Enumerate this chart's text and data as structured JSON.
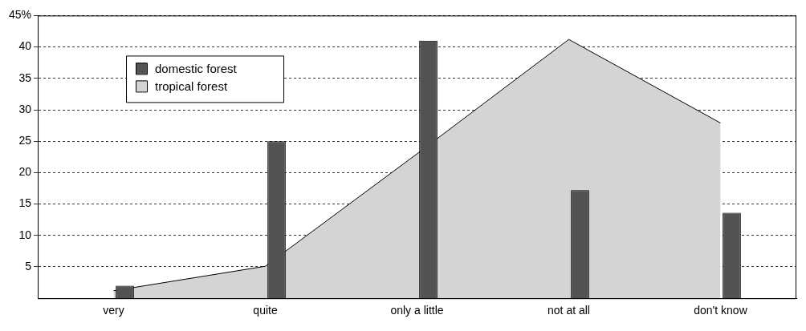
{
  "chart_data": {
    "type": "bar",
    "categories": [
      "very",
      "quite",
      "only a little",
      "not at all",
      "don't know"
    ],
    "series": [
      {
        "name": "tropical forest",
        "type": "area",
        "color": "#d4d4d4",
        "values": [
          1.2,
          5.1,
          23,
          41.2,
          27.9
        ]
      },
      {
        "name": "domestic forest",
        "color": "#535353",
        "values": [
          2,
          25,
          41,
          17.2,
          13.6
        ]
      }
    ],
    "ylim": [
      0,
      45
    ],
    "yticks": [
      5,
      10,
      15,
      20,
      25,
      30,
      35,
      40,
      {
        "value": 45,
        "label": "45%"
      }
    ],
    "grid": "y",
    "legend": "top left",
    "line_style": "dashed"
  }
}
